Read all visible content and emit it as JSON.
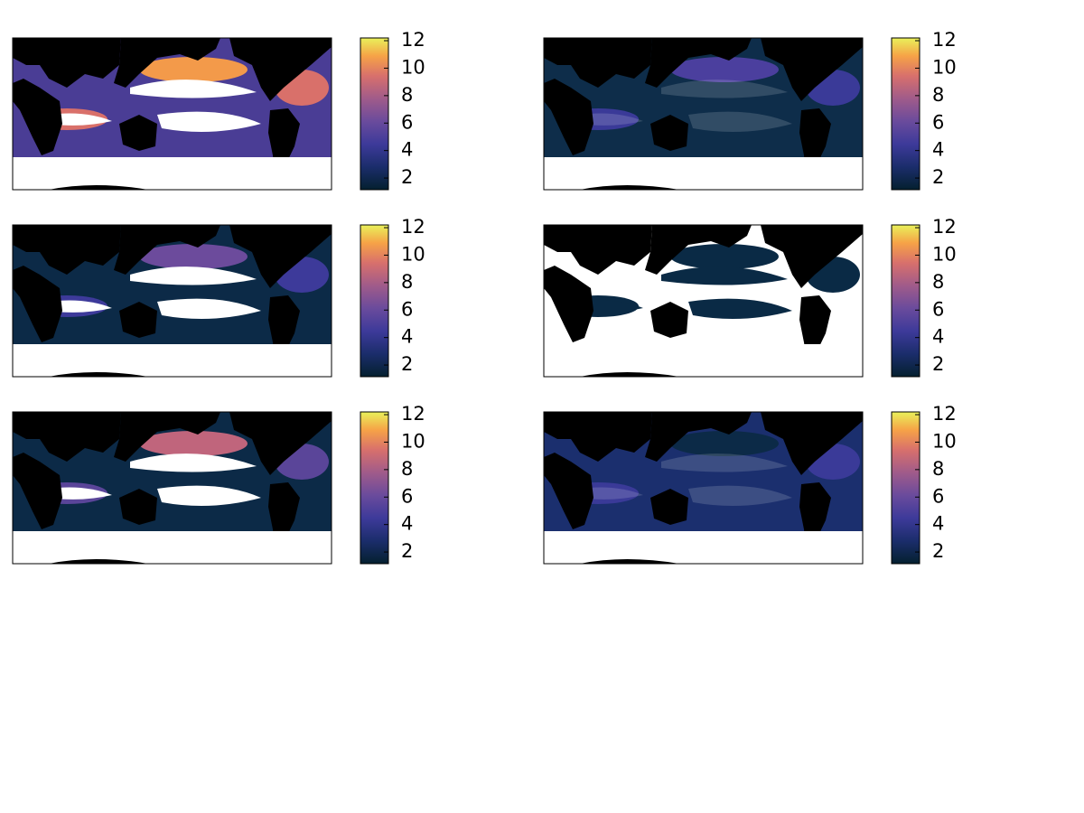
{
  "chart_data": [
    {
      "type": "map",
      "colorbar": {
        "clim": [
          1.15,
          12.2
        ],
        "ticks": [
          2,
          4,
          6,
          8,
          10,
          12
        ]
      }
    },
    {
      "type": "map",
      "colorbar": {
        "clim": [
          1.15,
          12.2
        ],
        "ticks": [
          2,
          4,
          6,
          8,
          10,
          12
        ]
      }
    },
    {
      "type": "map",
      "colorbar": {
        "clim": [
          1.15,
          12.2
        ],
        "ticks": [
          2,
          4,
          6,
          8,
          10,
          12
        ]
      }
    },
    {
      "type": "map",
      "colorbar": {
        "clim": [
          1.15,
          12.2
        ],
        "ticks": [
          2,
          4,
          6,
          8,
          10,
          12
        ]
      }
    },
    {
      "type": "map",
      "colorbar": {
        "clim": [
          1.15,
          12.2
        ],
        "ticks": [
          2,
          4,
          6,
          8,
          10,
          12
        ]
      }
    },
    {
      "type": "map",
      "colorbar": {
        "clim": [
          1.15,
          12.2
        ],
        "ticks": [
          2,
          4,
          6,
          8,
          10,
          12
        ]
      }
    }
  ]
}
